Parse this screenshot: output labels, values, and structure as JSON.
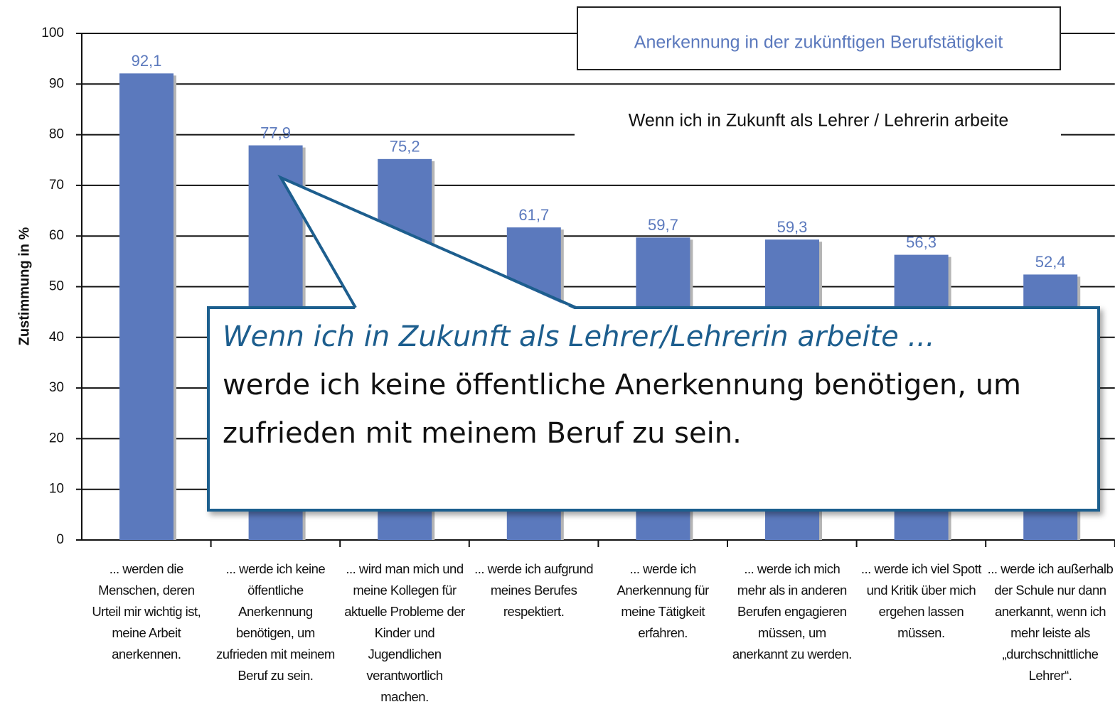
{
  "chart_data": {
    "type": "bar",
    "title": "Anerkennung in der zukünftigen Berufstätigkeit",
    "subtitle": "Wenn ich in Zukunft als Lehrer / Lehrerin arbeite",
    "y_label": "Zustimmung in %",
    "categories": [
      "... werden die Menschen, deren Urteil mir wichtig ist, meine Arbeit anerkennen.",
      "... werde ich keine öffentliche Anerkennung benötigen, um zufrieden mit meinem Beruf zu sein.",
      "... wird man mich und meine Kollegen für aktuelle Probleme der Kinder und Jugendlichen verantwortlich machen.",
      "... werde ich aufgrund meines Berufes respektiert.",
      "... werde ich Anerkennung für meine Tätigkeit erfahren.",
      "... werde ich mich mehr als in anderen Berufen engagieren müssen, um anerkannt zu werden.",
      "... werde ich viel Spott und Kritik über mich ergehen lassen müssen.",
      "... werde ich außerhalb der Schule nur dann anerkannt, wenn ich mehr leiste als „durchschnittliche Lehrer“."
    ],
    "values": [
      92.1,
      77.9,
      75.2,
      61.7,
      59.7,
      59.3,
      56.3,
      52.4
    ],
    "value_labels": [
      "92,1",
      "77,9",
      "75,2",
      "61,7",
      "59,7",
      "59,3",
      "56,3",
      "52,4"
    ],
    "color": "#5b79bd",
    "ylim": [
      0,
      100
    ],
    "yticks": [
      0,
      10,
      20,
      30,
      40,
      50,
      60,
      70,
      80,
      90,
      100
    ],
    "grid": true,
    "annotation": {
      "heading": "Wenn ich in Zukunft als Lehrer/Lehrerin arbeite ...",
      "text": "werde ich keine öffentliche Anerkennung benötigen, um zufrieden mit meinem Beruf zu sein."
    }
  }
}
